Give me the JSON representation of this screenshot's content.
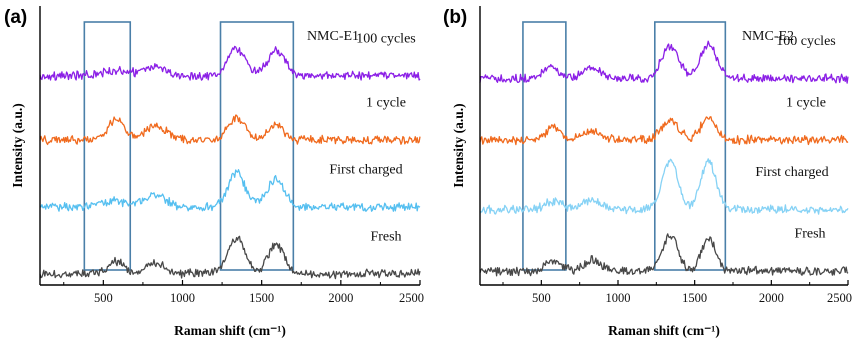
{
  "figure": {
    "panels": [
      "(a)",
      "(b)"
    ]
  },
  "chart_data": [
    {
      "type": "line",
      "panel_label": "(a)",
      "annotation": "NMC-E1",
      "xlabel": "Raman shift (cm⁻¹)",
      "ylabel": "Intensity (a.u.)",
      "xlim": [
        100,
        2500
      ],
      "xticks": [
        500,
        1000,
        1500,
        2000,
        2500
      ],
      "highlight_regions": [
        [
          380,
          670
        ],
        [
          1240,
          1700
        ]
      ],
      "series": [
        {
          "name": "100 cycles",
          "color": "#8b1fe6",
          "offset": 0.75,
          "peaks": [
            [
              580,
              0.02,
              80
            ],
            [
              830,
              0.03,
              70
            ],
            [
              1340,
              0.1,
              55
            ],
            [
              1590,
              0.09,
              55
            ]
          ]
        },
        {
          "name": "1 cycle",
          "color": "#f06a1e",
          "offset": 0.52,
          "peaks": [
            [
              580,
              0.075,
              50
            ],
            [
              830,
              0.05,
              70
            ],
            [
              1340,
              0.075,
              55
            ],
            [
              1590,
              0.06,
              45
            ]
          ]
        },
        {
          "name": "First charged",
          "color": "#55bff0",
          "offset": 0.28,
          "peaks": [
            [
              580,
              0.02,
              80
            ],
            [
              830,
              0.04,
              70
            ],
            [
              1340,
              0.12,
              55
            ],
            [
              1590,
              0.1,
              55
            ]
          ]
        },
        {
          "name": "Fresh",
          "color": "#484848",
          "offset": 0.04,
          "peaks": [
            [
              580,
              0.045,
              45
            ],
            [
              830,
              0.04,
              60
            ],
            [
              1340,
              0.13,
              55
            ],
            [
              1590,
              0.11,
              50
            ]
          ]
        }
      ]
    },
    {
      "type": "line",
      "panel_label": "(b)",
      "annotation": "NMC-E2",
      "xlabel": "Raman shift (cm⁻¹)",
      "ylabel": "Intensity (a.u.)",
      "xlim": [
        100,
        2500
      ],
      "xticks": [
        500,
        1000,
        1500,
        2000,
        2500
      ],
      "highlight_regions": [
        [
          380,
          660
        ],
        [
          1240,
          1700
        ]
      ],
      "series": [
        {
          "name": "100 cycles",
          "color": "#8b1fe6",
          "offset": 0.74,
          "peaks": [
            [
              560,
              0.04,
              55
            ],
            [
              830,
              0.04,
              60
            ],
            [
              1340,
              0.12,
              55
            ],
            [
              1590,
              0.12,
              55
            ]
          ]
        },
        {
          "name": "1 cycle",
          "color": "#f06a1e",
          "offset": 0.52,
          "peaks": [
            [
              580,
              0.045,
              45
            ],
            [
              830,
              0.035,
              60
            ],
            [
              1340,
              0.07,
              55
            ],
            [
              1590,
              0.08,
              50
            ]
          ]
        },
        {
          "name": "First charged",
          "color": "#86d2f5",
          "offset": 0.27,
          "peaks": [
            [
              580,
              0.03,
              60
            ],
            [
              830,
              0.035,
              60
            ],
            [
              1340,
              0.18,
              50
            ],
            [
              1590,
              0.17,
              50
            ]
          ]
        },
        {
          "name": "Fresh",
          "color": "#484848",
          "offset": 0.05,
          "peaks": [
            [
              580,
              0.04,
              45
            ],
            [
              830,
              0.04,
              60
            ],
            [
              1340,
              0.13,
              50
            ],
            [
              1590,
              0.12,
              45
            ]
          ]
        }
      ]
    }
  ]
}
